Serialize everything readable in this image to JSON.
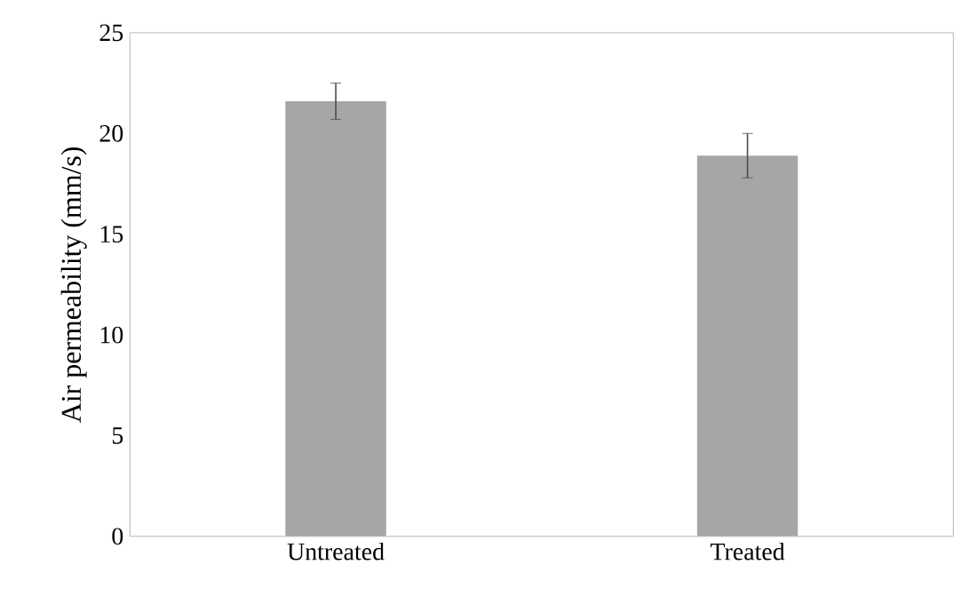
{
  "chart_data": {
    "type": "bar",
    "ylabel": "Air permeability (mm/s)",
    "categories": [
      "Untreated",
      "Treated"
    ],
    "values": [
      21.6,
      18.9
    ],
    "errors": [
      0.9,
      1.1
    ],
    "color": "#a6a6a6",
    "ylim": [
      0,
      25
    ],
    "yticks": [
      0,
      5,
      10,
      15,
      20,
      25
    ],
    "grid": false
  }
}
